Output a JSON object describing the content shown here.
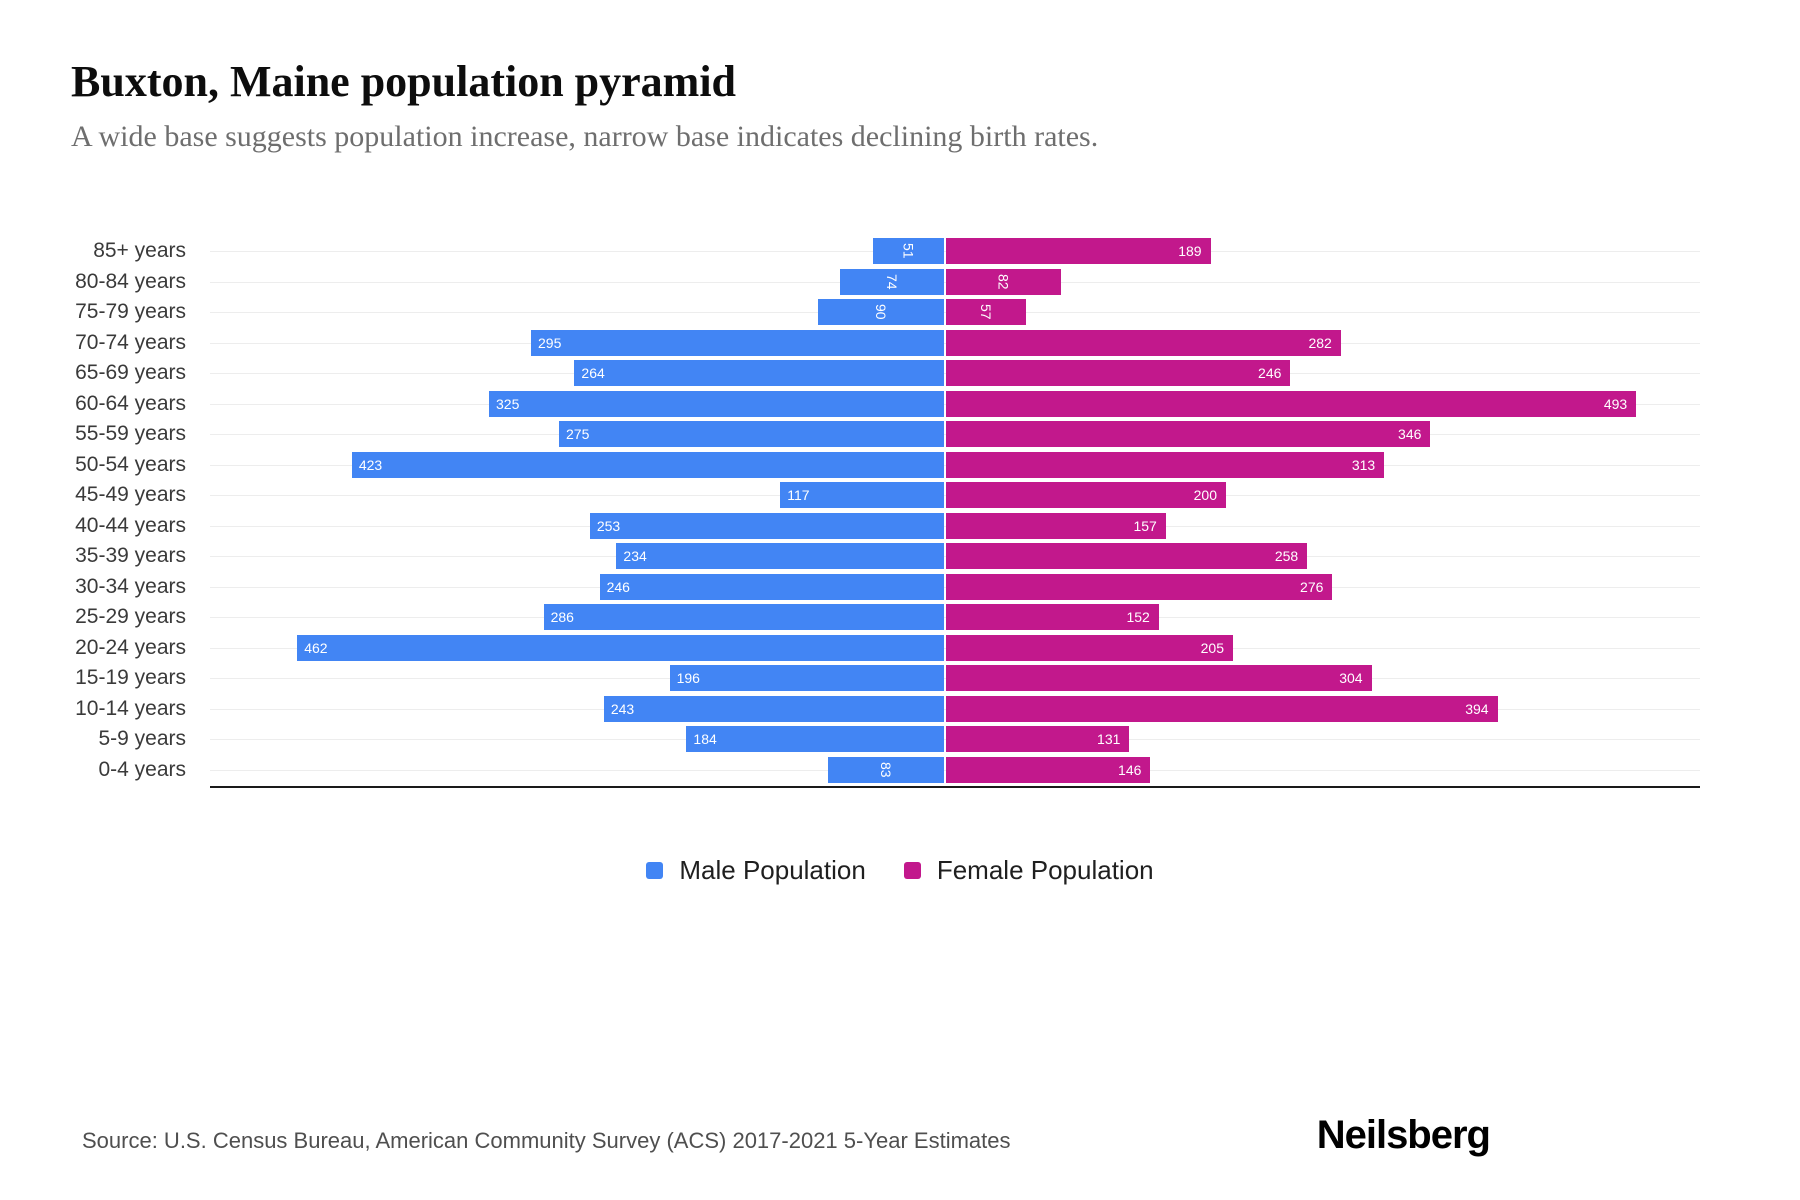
{
  "header": {
    "title": "Buxton, Maine population pyramid",
    "subtitle": "A wide base suggests population increase, narrow base indicates declining birth rates."
  },
  "chart_data": {
    "type": "bar",
    "variant": "population-pyramid",
    "orientation": "horizontal",
    "categories": [
      "85+ years",
      "80-84 years",
      "75-79 years",
      "70-74 years",
      "65-69 years",
      "60-64 years",
      "55-59 years",
      "50-54 years",
      "45-49 years",
      "40-44 years",
      "35-39 years",
      "30-34 years",
      "25-29 years",
      "20-24 years",
      "15-19 years",
      "10-14 years",
      "5-9 years",
      "0-4 years"
    ],
    "series": [
      {
        "name": "Male Population",
        "color": "#4285F4",
        "values": [
          51,
          74,
          90,
          295,
          264,
          325,
          275,
          423,
          117,
          253,
          234,
          246,
          286,
          462,
          196,
          243,
          184,
          83
        ]
      },
      {
        "name": "Female Population",
        "color": "#C2188C",
        "values": [
          189,
          82,
          57,
          282,
          246,
          493,
          346,
          313,
          200,
          157,
          258,
          276,
          152,
          205,
          304,
          394,
          131,
          146
        ]
      }
    ],
    "value_labels": "inside-end, white, rotated vertical when value < 100",
    "xlim_each_side": [
      0,
      530
    ],
    "grid": "horizontal faint lines per row",
    "legend_position": "bottom-center"
  },
  "footer": {
    "source": "Source: U.S. Census Bureau, American Community Survey (ACS) 2017-2021 5-Year Estimates",
    "brand": "Neilsberg"
  }
}
